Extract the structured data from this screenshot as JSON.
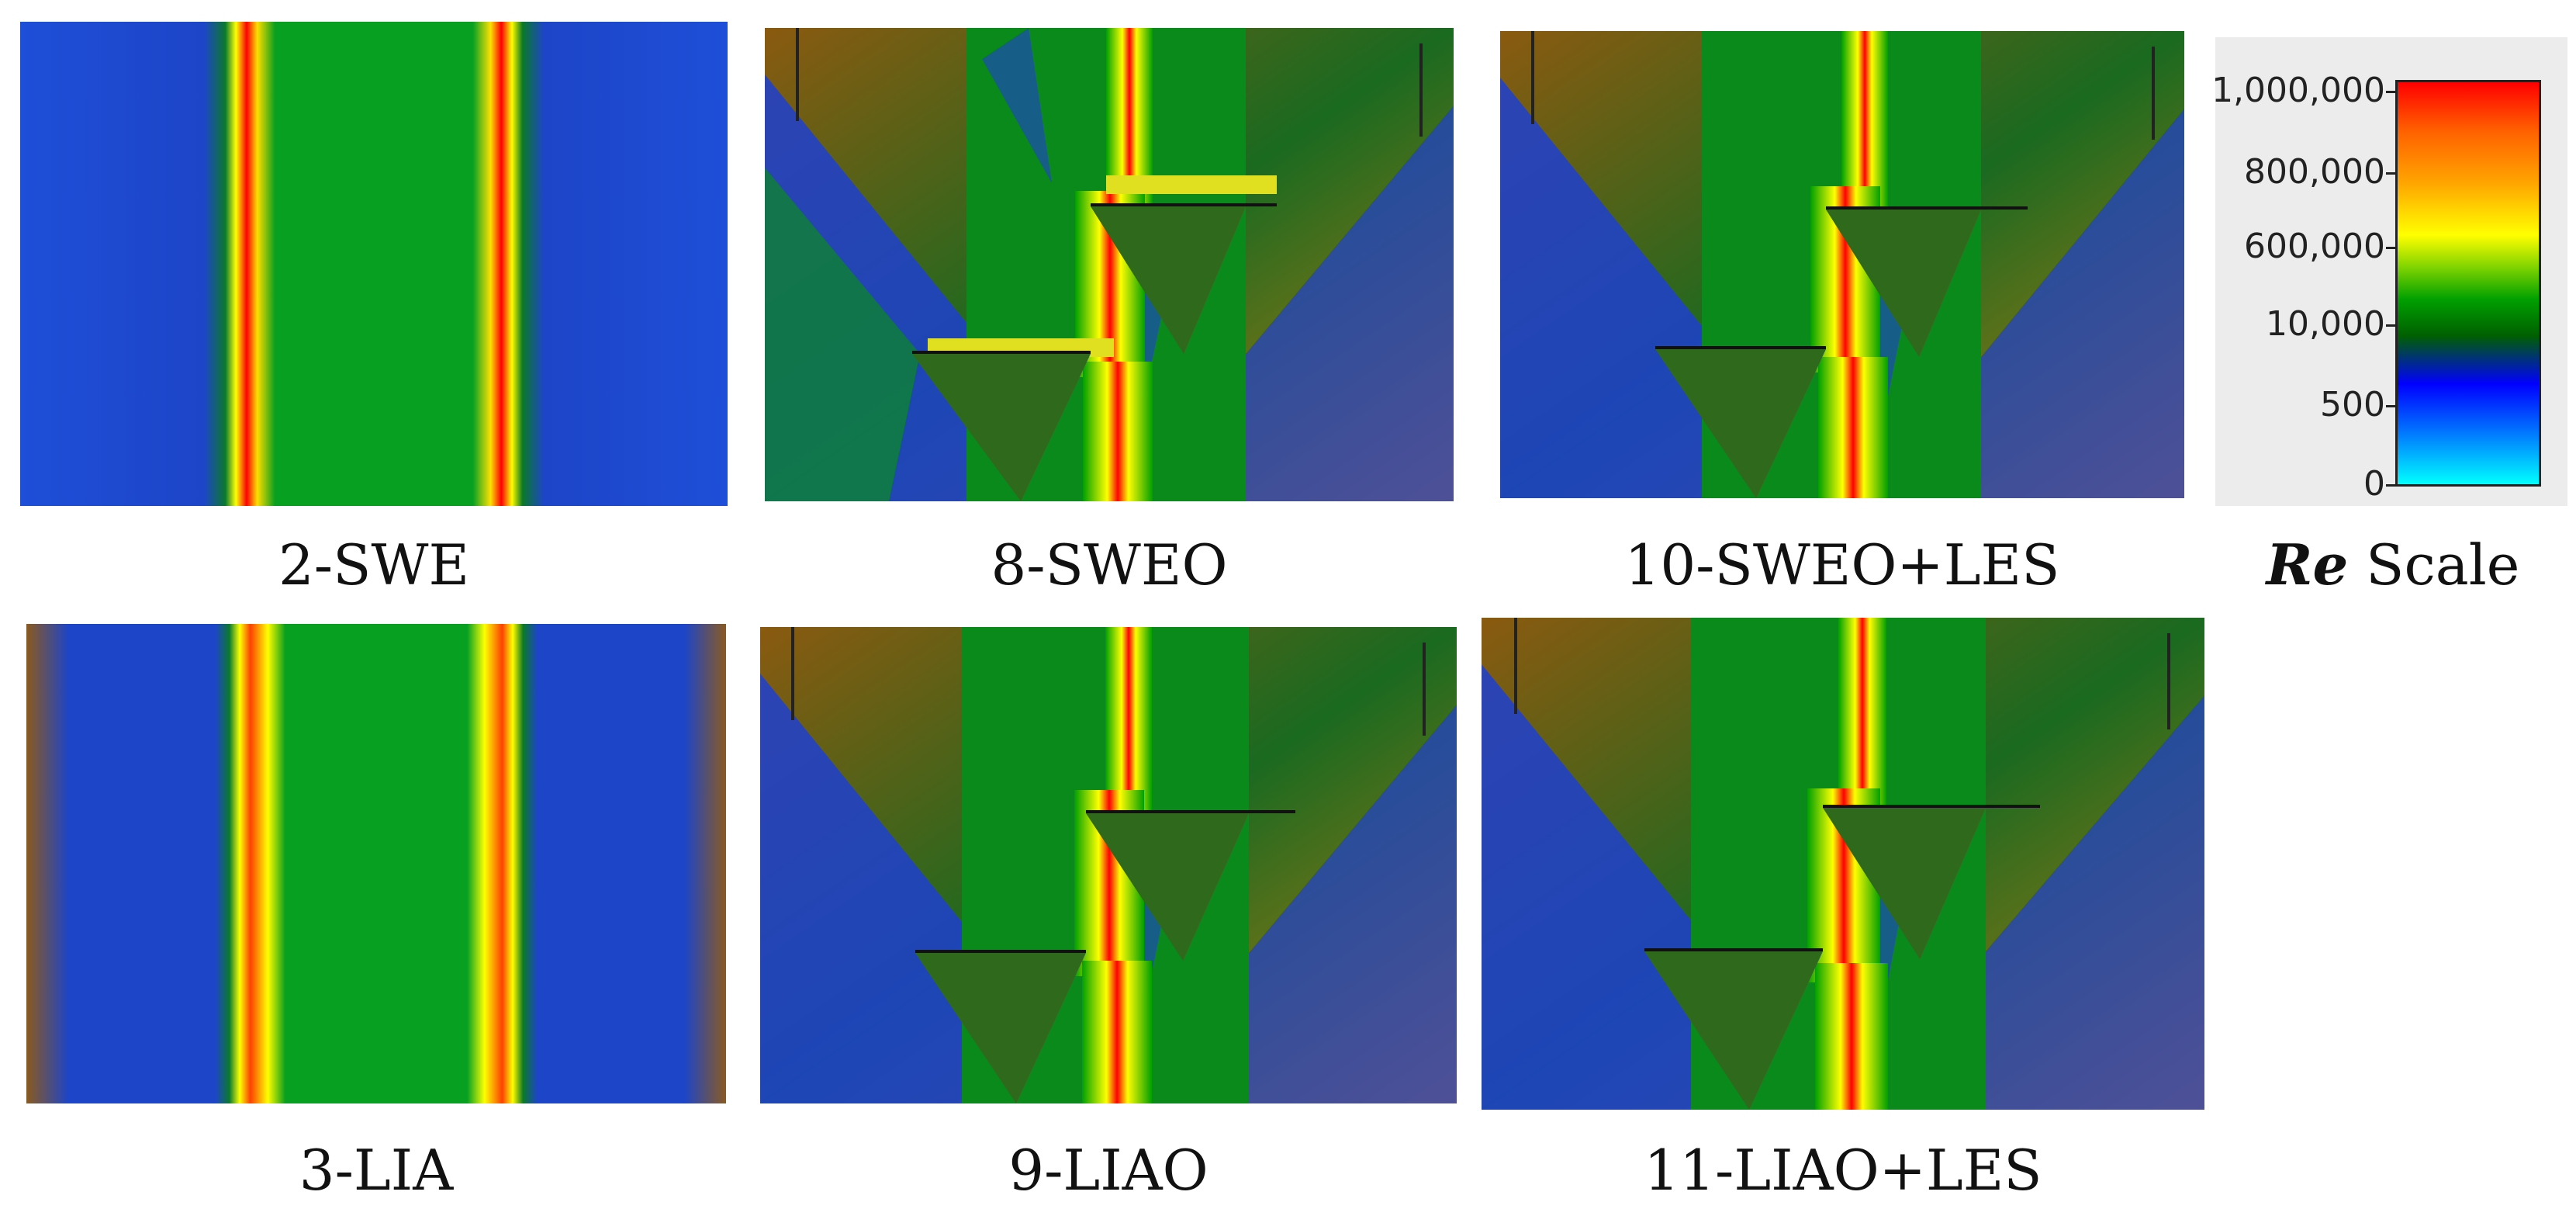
{
  "panels": [
    {
      "id": "p1",
      "label": "2-SWE"
    },
    {
      "id": "p2",
      "label": "8-SWEO"
    },
    {
      "id": "p3",
      "label": "10-SWEO+LES"
    },
    {
      "id": "p4",
      "label": "3-LIA"
    },
    {
      "id": "p5",
      "label": "9-LIAO"
    },
    {
      "id": "p6",
      "label": "11-LIAO+LES"
    }
  ],
  "scale": {
    "title_symbol": "Re",
    "title_suffix": "Scale",
    "ticks": [
      "1,000,000",
      "800,000",
      "600,000",
      "10,000",
      "500",
      "0"
    ],
    "colors": {
      "high": "#ff0000",
      "mid": "#00a000",
      "low": "#0000ff",
      "lowest": "#00ffff"
    }
  }
}
